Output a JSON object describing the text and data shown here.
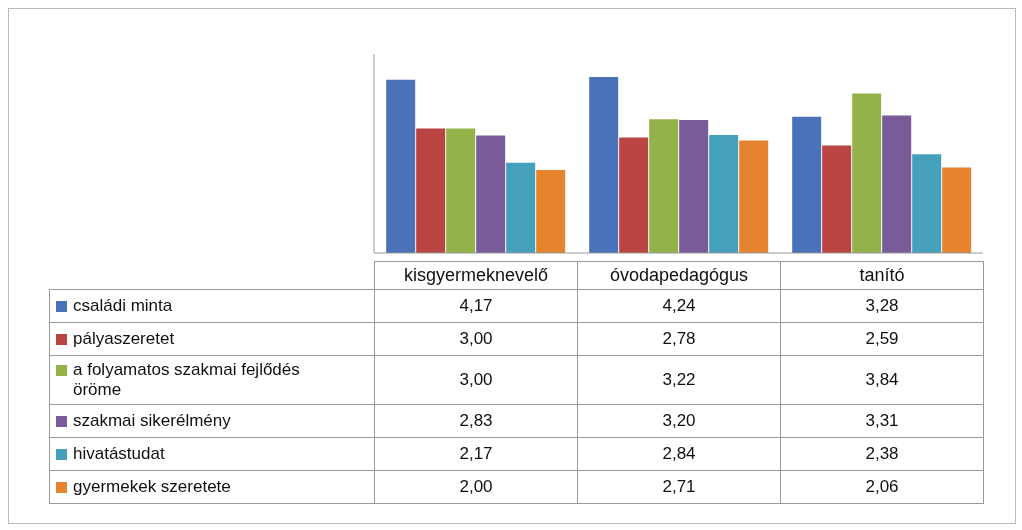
{
  "chart_data": {
    "type": "bar",
    "categories": [
      "kisgyermeknevelő",
      "óvodapedagógus",
      "tanító"
    ],
    "series": [
      {
        "name": "családi minta",
        "color": "#4a72b8",
        "values": [
          4.17,
          4.24,
          3.28
        ],
        "value_labels": [
          "4,17",
          "4,24",
          "3,28"
        ]
      },
      {
        "name": "pályaszeretet",
        "color": "#b94441",
        "values": [
          3.0,
          2.78,
          2.59
        ],
        "value_labels": [
          "3,00",
          "2,78",
          "2,59"
        ]
      },
      {
        "name": "a folyamatos szakmai fejlődés öröme",
        "color": "#94b24a",
        "values": [
          3.0,
          3.22,
          3.84
        ],
        "value_labels": [
          "3,00",
          "3,22",
          "3,84"
        ]
      },
      {
        "name": "szakmai sikerélmény",
        "color": "#7a5b99",
        "values": [
          2.83,
          3.2,
          3.31
        ],
        "value_labels": [
          "2,83",
          "3,20",
          "3,31"
        ]
      },
      {
        "name": "hivatástudat",
        "color": "#45a0bb",
        "values": [
          2.17,
          2.84,
          2.38
        ],
        "value_labels": [
          "2,17",
          "2,84",
          "2,38"
        ]
      },
      {
        "name": "gyermekek szeretete",
        "color": "#e5832f",
        "values": [
          2.0,
          2.71,
          2.06
        ],
        "value_labels": [
          "2,00",
          "2,71",
          "2,06"
        ]
      }
    ],
    "data_labels": true,
    "tick_labels": "x",
    "legend": "left"
  }
}
